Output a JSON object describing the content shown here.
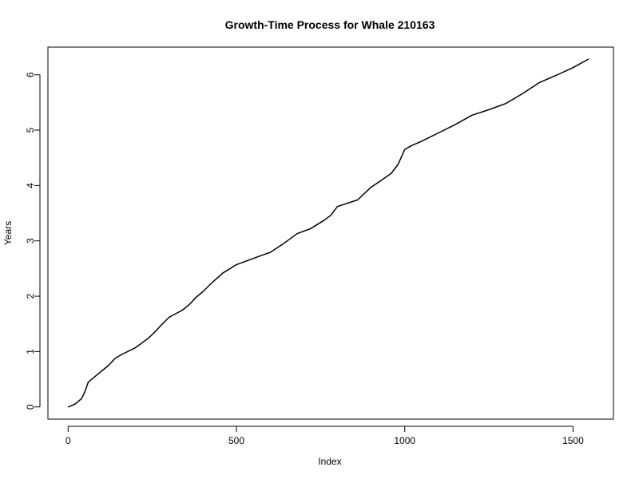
{
  "chart_data": {
    "type": "line",
    "title": "Growth-Time Process for Whale 210163",
    "xlabel": "Index",
    "ylabel": "Years",
    "xlim": [
      -60,
      1620
    ],
    "ylim": [
      -0.22,
      6.5
    ],
    "x_ticks": [
      0,
      500,
      1000,
      1500
    ],
    "x_tick_labels": [
      "0",
      "500",
      "1000",
      "1500"
    ],
    "y_ticks": [
      0,
      1,
      2,
      3,
      4,
      5,
      6
    ],
    "y_tick_labels": [
      "0",
      "1",
      "2",
      "3",
      "4",
      "5",
      "6"
    ],
    "grid": false,
    "line_color": "#000000",
    "series": [
      {
        "x": [
          1,
          20,
          40,
          50,
          60,
          80,
          100,
          120,
          140,
          160,
          200,
          240,
          260,
          280,
          300,
          340,
          360,
          380,
          400,
          430,
          460,
          500,
          540,
          580,
          600,
          640,
          680,
          720,
          760,
          780,
          800,
          860,
          900,
          920,
          960,
          980,
          1000,
          1020,
          1050,
          1100,
          1150,
          1200,
          1250,
          1300,
          1350,
          1400,
          1450,
          1500,
          1545
        ],
        "y": [
          0.0,
          0.05,
          0.15,
          0.28,
          0.45,
          0.55,
          0.65,
          0.75,
          0.88,
          0.95,
          1.07,
          1.25,
          1.37,
          1.5,
          1.62,
          1.75,
          1.85,
          1.98,
          2.08,
          2.26,
          2.42,
          2.57,
          2.66,
          2.75,
          2.79,
          2.95,
          3.13,
          3.22,
          3.37,
          3.46,
          3.62,
          3.74,
          3.97,
          4.05,
          4.22,
          4.38,
          4.65,
          4.72,
          4.8,
          4.95,
          5.1,
          5.27,
          5.37,
          5.48,
          5.66,
          5.86,
          5.99,
          6.13,
          6.28
        ]
      }
    ]
  }
}
